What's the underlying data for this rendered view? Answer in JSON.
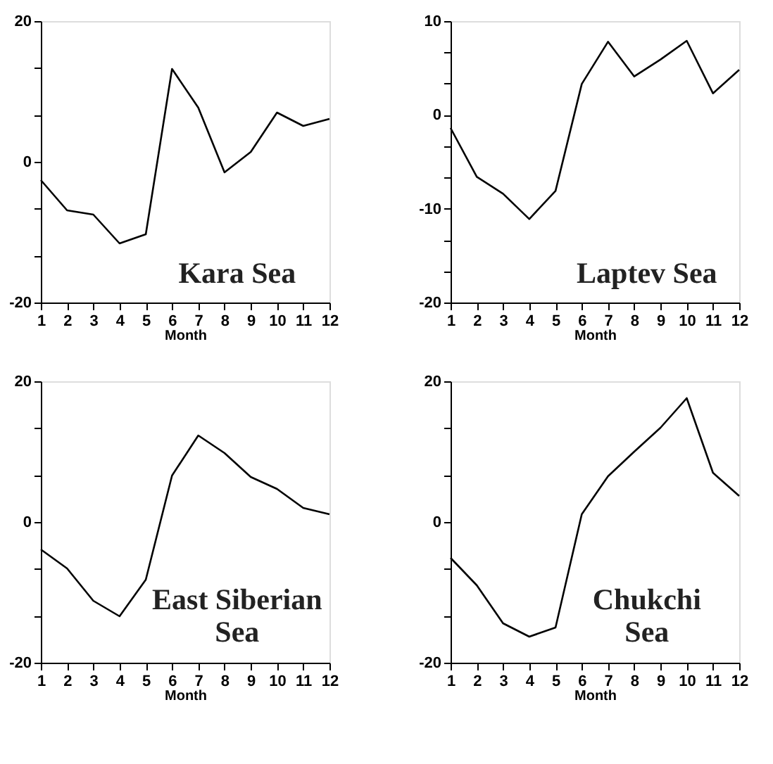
{
  "chart_data": [
    {
      "type": "line",
      "xlabel": "Month",
      "annotations": [
        "Kara Sea"
      ],
      "x": [
        1,
        2,
        3,
        4,
        5,
        6,
        7,
        8,
        9,
        10,
        11,
        12
      ],
      "values": [
        -2.6,
        -6.9,
        -7.5,
        -11.6,
        -10.3,
        13.2,
        7.7,
        -1.5,
        1.4,
        7.0,
        5.1,
        6.1
      ],
      "color": "#000000",
      "xlim": [
        1,
        12
      ],
      "xticks": [
        1,
        2,
        3,
        4,
        5,
        6,
        7,
        8,
        9,
        10,
        11,
        12
      ],
      "ylim": [
        -20,
        20
      ],
      "yticks": [
        -20,
        {
          "value": -13.33,
          "label": null
        },
        {
          "value": -6.67,
          "label": null
        },
        0,
        {
          "value": 6.67,
          "label": null
        },
        {
          "value": 13.33,
          "label": null
        },
        20
      ],
      "grid": false
    },
    {
      "type": "line",
      "xlabel": "Month",
      "annotations": [
        "Laptev Sea"
      ],
      "x": [
        1,
        2,
        3,
        4,
        5,
        6,
        7,
        8,
        9,
        10,
        11,
        12
      ],
      "values": [
        -1.4,
        -6.6,
        -8.4,
        -11.1,
        -8.1,
        3.3,
        7.8,
        4.1,
        5.9,
        7.9,
        2.3,
        4.8
      ],
      "color": "#000000",
      "xlim": [
        1,
        12
      ],
      "xticks": [
        1,
        2,
        3,
        4,
        5,
        6,
        7,
        8,
        9,
        10,
        11,
        12
      ],
      "ylim": [
        -20,
        10
      ],
      "yticks": [
        -20,
        {
          "value": -16.67,
          "label": null
        },
        {
          "value": -13.33,
          "label": null
        },
        -10,
        {
          "value": -6.67,
          "label": null
        },
        {
          "value": -3.33,
          "label": null
        },
        0,
        {
          "value": 3.33,
          "label": null
        },
        {
          "value": 6.67,
          "label": null
        },
        10
      ],
      "grid": false
    },
    {
      "type": "line",
      "xlabel": "Month",
      "annotations": [
        "East Siberian\nSea"
      ],
      "x": [
        1,
        2,
        3,
        4,
        5,
        6,
        7,
        8,
        9,
        10,
        11,
        12
      ],
      "values": [
        -3.9,
        -6.6,
        -11.2,
        -13.4,
        -8.2,
        6.6,
        12.3,
        9.8,
        6.4,
        4.7,
        2.0,
        1.1
      ],
      "color": "#000000",
      "xlim": [
        1,
        12
      ],
      "xticks": [
        1,
        2,
        3,
        4,
        5,
        6,
        7,
        8,
        9,
        10,
        11,
        12
      ],
      "ylim": [
        -20,
        20
      ],
      "yticks": [
        -20,
        {
          "value": -13.33,
          "label": null
        },
        {
          "value": -6.67,
          "label": null
        },
        0,
        {
          "value": 6.67,
          "label": null
        },
        {
          "value": 13.33,
          "label": null
        },
        20
      ],
      "grid": false
    },
    {
      "type": "line",
      "xlabel": "Month",
      "annotations": [
        "Chukchi\nSea"
      ],
      "x": [
        1,
        2,
        3,
        4,
        5,
        6,
        7,
        8,
        9,
        10,
        11,
        12
      ],
      "values": [
        -5.1,
        -9.0,
        -14.4,
        -16.3,
        -15.0,
        1.1,
        6.5,
        10.0,
        13.4,
        17.6,
        7.0,
        3.7
      ],
      "color": "#000000",
      "xlim": [
        1,
        12
      ],
      "xticks": [
        1,
        2,
        3,
        4,
        5,
        6,
        7,
        8,
        9,
        10,
        11,
        12
      ],
      "ylim": [
        -20,
        20
      ],
      "yticks": [
        -20,
        {
          "value": -13.33,
          "label": null
        },
        {
          "value": -6.67,
          "label": null
        },
        0,
        {
          "value": 6.67,
          "label": null
        },
        {
          "value": 13.33,
          "label": null
        },
        20
      ],
      "grid": false
    }
  ]
}
